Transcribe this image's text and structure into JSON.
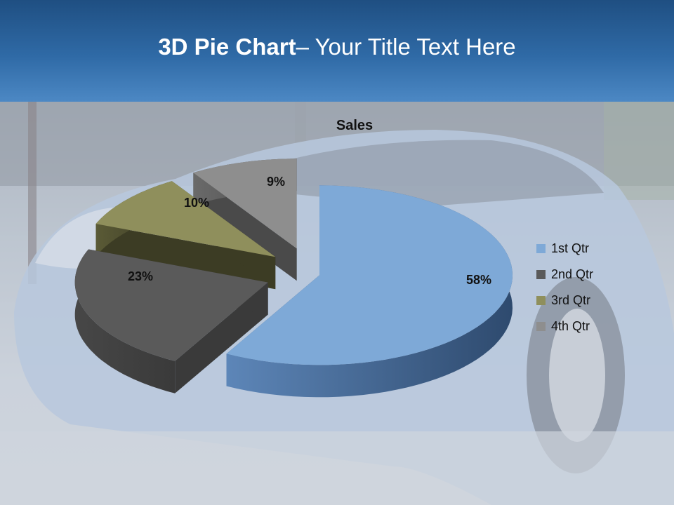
{
  "header": {
    "title_bold": "3D Pie Chart",
    "title_rest": "– Your Title Text Here"
  },
  "background": {
    "description_icon": "sports-car-photo-icon"
  },
  "chart_data": {
    "type": "pie",
    "title": "Sales",
    "categories": [
      "1st Qtr",
      "2nd Qtr",
      "3rd Qtr",
      "4th Qtr"
    ],
    "values": [
      58,
      23,
      10,
      9
    ],
    "labels": [
      "58%",
      "23%",
      "10%",
      "9%"
    ],
    "colors": [
      "#7ea9d7",
      "#5a5a5a",
      "#8f8f5c",
      "#8e8e8e"
    ],
    "exploded": true,
    "style": "3d",
    "legend": "right"
  }
}
